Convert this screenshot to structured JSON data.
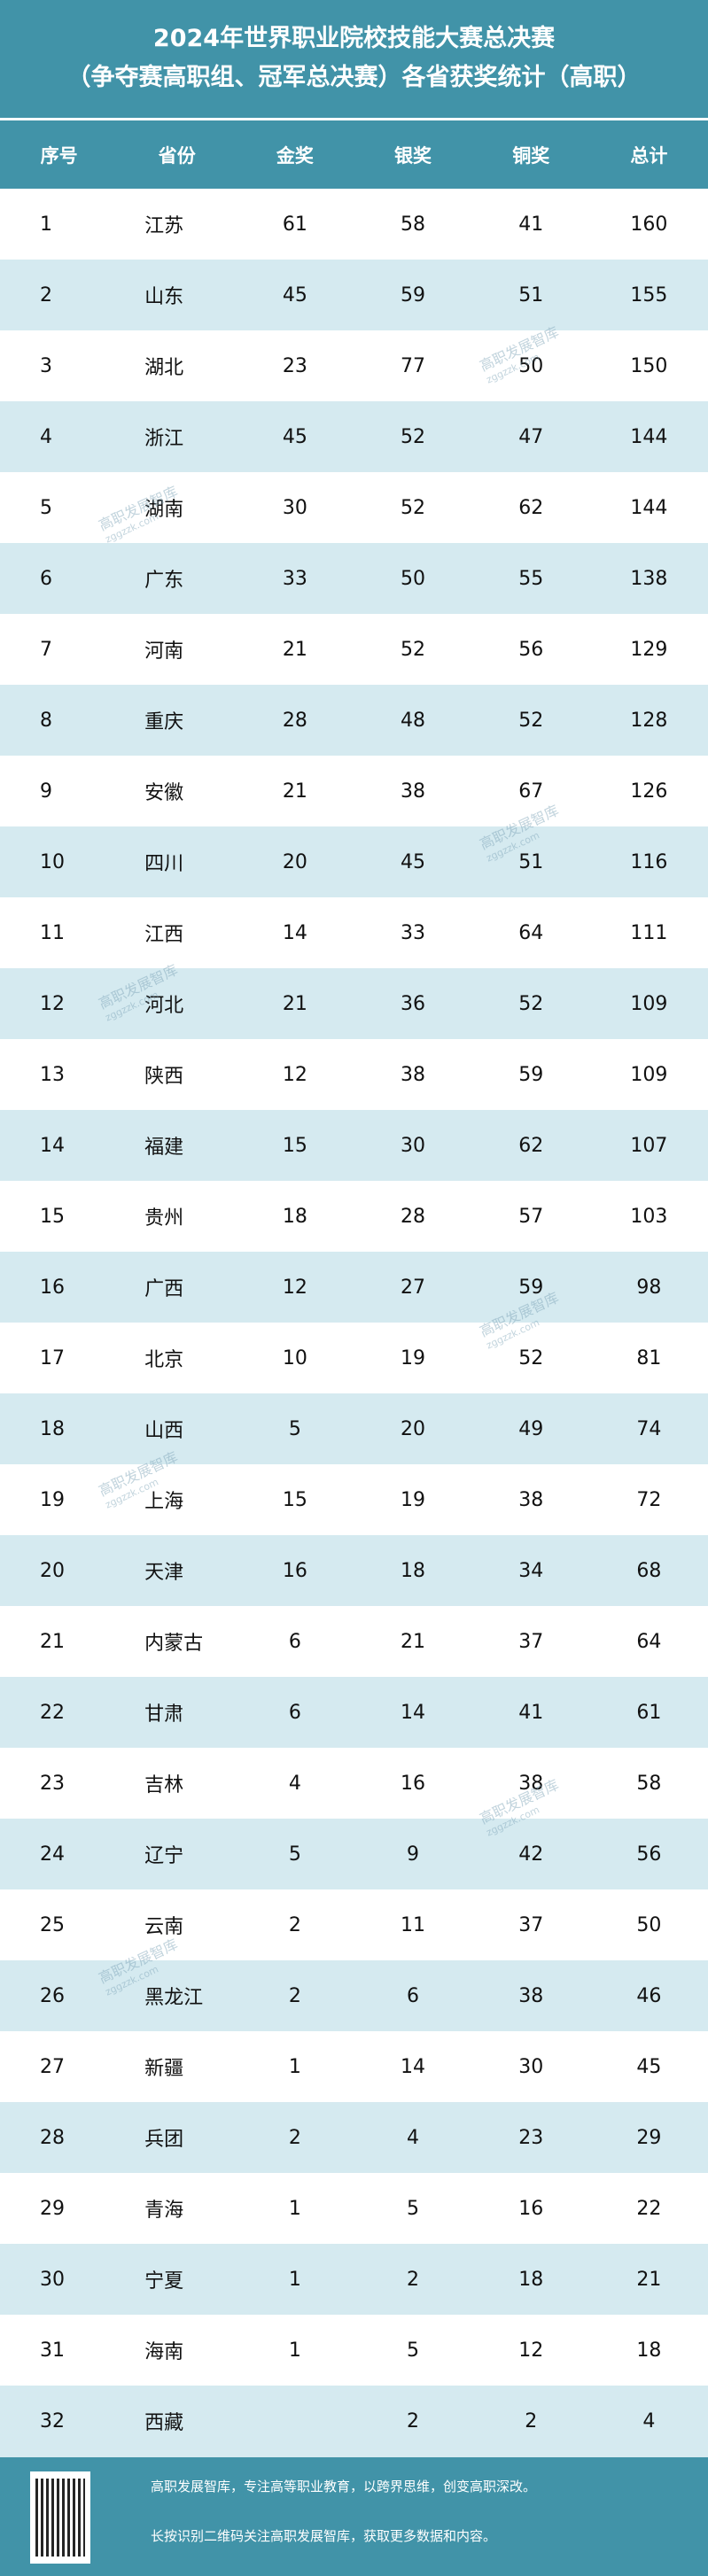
{
  "title": {
    "line1": "2024年世界职业院校技能大赛总决赛",
    "line2": "（争夺赛高职组、冠军总决赛）各省获奖统计（高职）"
  },
  "colors": {
    "header": "#4193a8",
    "stripe": "#d5eaf0"
  },
  "columns": [
    "序号",
    "省份",
    "金奖",
    "银奖",
    "铜奖",
    "总计"
  ],
  "rows": [
    [
      "1",
      "江苏",
      "61",
      "58",
      "41",
      "160"
    ],
    [
      "2",
      "山东",
      "45",
      "59",
      "51",
      "155"
    ],
    [
      "3",
      "湖北",
      "23",
      "77",
      "50",
      "150"
    ],
    [
      "4",
      "浙江",
      "45",
      "52",
      "47",
      "144"
    ],
    [
      "5",
      "湖南",
      "30",
      "52",
      "62",
      "144"
    ],
    [
      "6",
      "广东",
      "33",
      "50",
      "55",
      "138"
    ],
    [
      "7",
      "河南",
      "21",
      "52",
      "56",
      "129"
    ],
    [
      "8",
      "重庆",
      "28",
      "48",
      "52",
      "128"
    ],
    [
      "9",
      "安徽",
      "21",
      "38",
      "67",
      "126"
    ],
    [
      "10",
      "四川",
      "20",
      "45",
      "51",
      "116"
    ],
    [
      "11",
      "江西",
      "14",
      "33",
      "64",
      "111"
    ],
    [
      "12",
      "河北",
      "21",
      "36",
      "52",
      "109"
    ],
    [
      "13",
      "陕西",
      "12",
      "38",
      "59",
      "109"
    ],
    [
      "14",
      "福建",
      "15",
      "30",
      "62",
      "107"
    ],
    [
      "15",
      "贵州",
      "18",
      "28",
      "57",
      "103"
    ],
    [
      "16",
      "广西",
      "12",
      "27",
      "59",
      "98"
    ],
    [
      "17",
      "北京",
      "10",
      "19",
      "52",
      "81"
    ],
    [
      "18",
      "山西",
      "5",
      "20",
      "49",
      "74"
    ],
    [
      "19",
      "上海",
      "15",
      "19",
      "38",
      "72"
    ],
    [
      "20",
      "天津",
      "16",
      "18",
      "34",
      "68"
    ],
    [
      "21",
      "内蒙古",
      "6",
      "21",
      "37",
      "64"
    ],
    [
      "22",
      "甘肃",
      "6",
      "14",
      "41",
      "61"
    ],
    [
      "23",
      "吉林",
      "4",
      "16",
      "38",
      "58"
    ],
    [
      "24",
      "辽宁",
      "5",
      "9",
      "42",
      "56"
    ],
    [
      "25",
      "云南",
      "2",
      "11",
      "37",
      "50"
    ],
    [
      "26",
      "黑龙江",
      "2",
      "6",
      "38",
      "46"
    ],
    [
      "27",
      "新疆",
      "1",
      "14",
      "30",
      "45"
    ],
    [
      "28",
      "兵团",
      "2",
      "4",
      "23",
      "29"
    ],
    [
      "29",
      "青海",
      "1",
      "5",
      "16",
      "22"
    ],
    [
      "30",
      "宁夏",
      "1",
      "2",
      "18",
      "21"
    ],
    [
      "31",
      "海南",
      "1",
      "5",
      "12",
      "18"
    ],
    [
      "32",
      "西藏",
      "",
      "2",
      "2",
      "4"
    ]
  ],
  "watermark": {
    "name": "高职发展智库",
    "url": "zggzzk.com"
  },
  "footer": {
    "line1": "高职发展智库，专注高等职业教育，以跨界思维，创变高职深改。",
    "line2": "长按识别二维码关注高职发展智库，获取更多数据和内容。"
  }
}
